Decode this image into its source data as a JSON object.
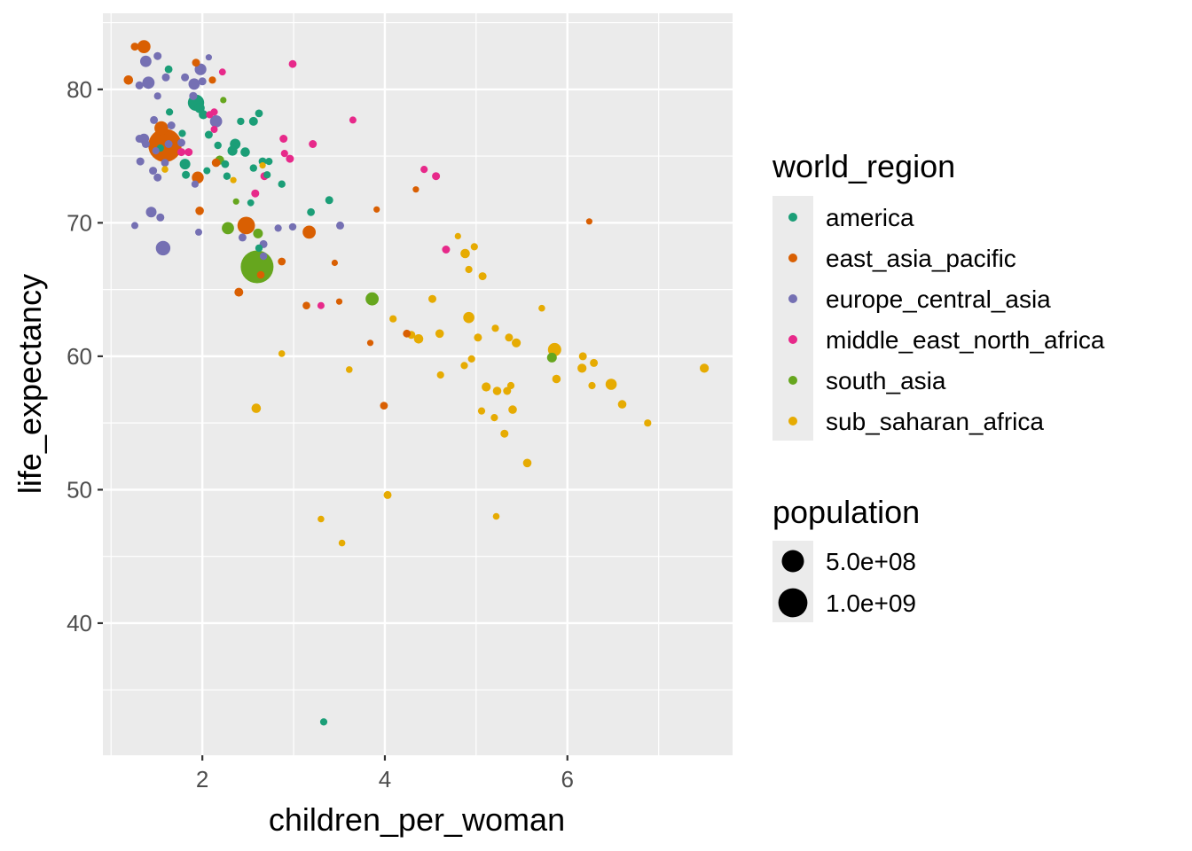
{
  "chart_data": {
    "type": "scatter",
    "xlabel": "children_per_woman",
    "ylabel": "life_expectancy",
    "xlim": [
      0.91,
      7.81
    ],
    "ylim": [
      30.1,
      85.7
    ],
    "x_ticks": [
      2,
      4,
      6
    ],
    "x_tick_labels": [
      "2",
      "4",
      "6"
    ],
    "y_ticks": [
      40,
      50,
      60,
      70,
      80
    ],
    "y_tick_labels": [
      "40",
      "50",
      "60",
      "70",
      "80"
    ],
    "grid": true,
    "legend_position": "right",
    "color_legend": {
      "title": "world_region",
      "entries": [
        {
          "label": "america",
          "color": "#1B9E77"
        },
        {
          "label": "east_asia_pacific",
          "color": "#D95F02"
        },
        {
          "label": "europe_central_asia",
          "color": "#7570B3"
        },
        {
          "label": "middle_east_north_africa",
          "color": "#E7298A"
        },
        {
          "label": "south_asia",
          "color": "#66A61E"
        },
        {
          "label": "sub_saharan_africa",
          "color": "#E6AB02"
        }
      ]
    },
    "size_legend": {
      "title": "population",
      "entries": [
        {
          "label": "5.0e+08",
          "value": 500000000
        },
        {
          "label": "1.0e+09",
          "value": 1000000000
        }
      ]
    },
    "series": [
      {
        "name": "america",
        "points": [
          [
            1.63,
            81.5,
            8
          ],
          [
            1.64,
            78.3,
            5
          ],
          [
            1.93,
            79.0,
            210
          ],
          [
            1.97,
            78.6,
            35
          ],
          [
            2.01,
            78.1,
            20
          ],
          [
            1.78,
            76.7,
            5
          ],
          [
            1.54,
            75.6,
            5
          ],
          [
            1.81,
            74.4,
            45
          ],
          [
            1.82,
            73.6,
            10
          ],
          [
            2.07,
            76.6,
            10
          ],
          [
            2.17,
            75.8,
            6
          ],
          [
            2.05,
            73.9,
            4
          ],
          [
            2.27,
            73.5,
            6
          ],
          [
            2.42,
            77.6,
            6
          ],
          [
            2.56,
            77.6,
            18
          ],
          [
            2.62,
            78.2,
            8
          ],
          [
            2.36,
            75.9,
            45
          ],
          [
            2.33,
            75.4,
            32
          ],
          [
            2.47,
            75.3,
            25
          ],
          [
            2.25,
            74.4,
            8
          ],
          [
            2.66,
            74.6,
            10
          ],
          [
            2.73,
            74.6,
            5
          ],
          [
            2.56,
            74.1,
            6
          ],
          [
            2.71,
            73.6,
            5
          ],
          [
            2.87,
            72.9,
            6
          ],
          [
            2.53,
            71.5,
            3
          ],
          [
            3.19,
            70.8,
            8
          ],
          [
            3.39,
            71.7,
            10
          ],
          [
            2.62,
            68.1,
            6
          ],
          [
            3.33,
            32.6,
            5
          ]
        ]
      },
      {
        "name": "east_asia_pacific",
        "points": [
          [
            1.26,
            83.2,
            10
          ],
          [
            1.36,
            83.2,
            100
          ],
          [
            1.19,
            80.7,
            25
          ],
          [
            1.93,
            82.0,
            10
          ],
          [
            2.11,
            80.7,
            5
          ],
          [
            1.55,
            77.1,
            120
          ],
          [
            1.59,
            75.8,
            1390
          ],
          [
            1.95,
            73.4,
            70
          ],
          [
            2.15,
            74.5,
            15
          ],
          [
            2.48,
            69.8,
            260
          ],
          [
            1.97,
            70.9,
            15
          ],
          [
            3.17,
            69.3,
            100
          ],
          [
            2.4,
            64.8,
            18
          ],
          [
            2.64,
            66.1,
            7
          ],
          [
            2.87,
            67.1,
            8
          ],
          [
            3.45,
            67.0,
            1
          ],
          [
            3.14,
            63.8,
            7
          ],
          [
            3.5,
            64.1,
            1
          ],
          [
            3.91,
            71.0,
            1
          ],
          [
            4.34,
            72.5,
            1
          ],
          [
            6.24,
            70.1,
            1
          ],
          [
            3.84,
            61.0,
            1
          ],
          [
            4.24,
            61.7,
            8
          ],
          [
            3.99,
            56.3,
            8
          ]
        ]
      },
      {
        "name": "europe_central_asia",
        "points": [
          [
            1.51,
            82.5,
            10
          ],
          [
            1.38,
            82.1,
            60
          ],
          [
            2.07,
            82.4,
            1
          ],
          [
            1.31,
            80.3,
            10
          ],
          [
            1.41,
            80.5,
            80
          ],
          [
            1.6,
            80.9,
            10
          ],
          [
            1.51,
            79.5,
            5
          ],
          [
            1.81,
            80.9,
            10
          ],
          [
            1.91,
            80.4,
            60
          ],
          [
            1.98,
            81.5,
            65
          ],
          [
            2.0,
            80.6,
            10
          ],
          [
            1.9,
            79.5,
            11
          ],
          [
            2.15,
            77.6,
            80
          ],
          [
            1.47,
            77.7,
            10
          ],
          [
            1.31,
            76.3,
            10
          ],
          [
            1.36,
            76.3,
            40
          ],
          [
            1.38,
            75.9,
            10
          ],
          [
            1.49,
            75.4,
            5
          ],
          [
            1.63,
            75.9,
            10
          ],
          [
            1.59,
            74.5,
            8
          ],
          [
            1.32,
            74.6,
            10
          ],
          [
            1.46,
            73.9,
            10
          ],
          [
            1.51,
            73.4,
            10
          ],
          [
            1.92,
            72.9,
            5
          ],
          [
            1.44,
            70.8,
            45
          ],
          [
            1.54,
            70.4,
            10
          ],
          [
            1.26,
            69.8,
            4
          ],
          [
            1.57,
            68.1,
            145
          ],
          [
            1.96,
            69.3,
            4
          ],
          [
            2.44,
            68.9,
            10
          ],
          [
            2.67,
            68.4,
            10
          ],
          [
            2.83,
            69.6,
            5
          ],
          [
            2.99,
            69.7,
            6
          ],
          [
            3.51,
            69.8,
            9
          ],
          [
            2.67,
            67.5,
            6
          ],
          [
            1.66,
            77.3,
            10
          ],
          [
            1.77,
            76.0,
            10
          ]
        ]
      },
      {
        "name": "middle_east_north_africa",
        "points": [
          [
            2.99,
            81.9,
            8
          ],
          [
            2.22,
            81.3,
            3
          ],
          [
            2.08,
            78.1,
            5
          ],
          [
            2.13,
            78.3,
            5
          ],
          [
            2.13,
            77.0,
            4
          ],
          [
            3.65,
            77.7,
            4
          ],
          [
            2.89,
            76.3,
            10
          ],
          [
            3.21,
            75.9,
            10
          ],
          [
            2.9,
            75.2,
            5
          ],
          [
            2.96,
            74.8,
            10
          ],
          [
            1.77,
            75.3,
            10
          ],
          [
            2.68,
            73.5,
            10
          ],
          [
            2.58,
            72.2,
            10
          ],
          [
            4.43,
            74.0,
            5
          ],
          [
            4.56,
            73.5,
            10
          ],
          [
            4.67,
            68.0,
            10
          ],
          [
            3.3,
            63.8,
            4
          ],
          [
            1.85,
            75.3,
            10
          ]
        ]
      },
      {
        "name": "south_asia",
        "points": [
          [
            2.23,
            79.2,
            1
          ],
          [
            2.19,
            74.7,
            20
          ],
          [
            2.28,
            69.6,
            80
          ],
          [
            2.61,
            69.2,
            30
          ],
          [
            2.6,
            66.7,
            1350
          ],
          [
            3.86,
            64.3,
            100
          ],
          [
            2.37,
            71.6,
            1
          ],
          [
            5.83,
            59.9,
            30
          ]
        ]
      },
      {
        "name": "sub_saharan_africa",
        "points": [
          [
            1.59,
            74.0,
            2
          ],
          [
            2.34,
            73.2,
            1
          ],
          [
            2.66,
            74.3,
            1
          ],
          [
            4.8,
            69.0,
            1
          ],
          [
            4.98,
            68.2,
            5
          ],
          [
            4.88,
            67.7,
            25
          ],
          [
            4.92,
            66.5,
            5
          ],
          [
            5.07,
            66.0,
            10
          ],
          [
            5.72,
            63.6,
            2
          ],
          [
            4.52,
            64.3,
            10
          ],
          [
            4.92,
            62.9,
            55
          ],
          [
            4.09,
            62.8,
            5
          ],
          [
            5.21,
            62.1,
            5
          ],
          [
            5.02,
            61.4,
            10
          ],
          [
            4.6,
            61.7,
            15
          ],
          [
            4.29,
            61.6,
            10
          ],
          [
            4.37,
            61.3,
            25
          ],
          [
            5.36,
            61.4,
            10
          ],
          [
            5.44,
            61.0,
            20
          ],
          [
            5.86,
            60.5,
            105
          ],
          [
            2.87,
            60.2,
            2
          ],
          [
            4.95,
            59.8,
            5
          ],
          [
            4.87,
            59.3,
            5
          ],
          [
            6.17,
            60.0,
            10
          ],
          [
            6.29,
            59.5,
            10
          ],
          [
            6.16,
            59.1,
            20
          ],
          [
            7.5,
            59.1,
            20
          ],
          [
            5.88,
            58.3,
            15
          ],
          [
            4.61,
            58.6,
            5
          ],
          [
            3.61,
            59.0,
            2
          ],
          [
            5.11,
            57.7,
            20
          ],
          [
            5.23,
            57.4,
            15
          ],
          [
            5.34,
            57.4,
            10
          ],
          [
            5.38,
            57.8,
            5
          ],
          [
            6.27,
            57.8,
            5
          ],
          [
            6.48,
            57.9,
            55
          ],
          [
            5.06,
            55.9,
            5
          ],
          [
            5.2,
            55.4,
            5
          ],
          [
            5.4,
            56.0,
            15
          ],
          [
            6.6,
            56.4,
            15
          ],
          [
            6.88,
            55.0,
            5
          ],
          [
            5.31,
            54.2,
            10
          ],
          [
            5.56,
            52.0,
            15
          ],
          [
            2.59,
            56.1,
            25
          ],
          [
            4.03,
            49.6,
            10
          ],
          [
            3.3,
            47.8,
            2
          ],
          [
            5.22,
            48.0,
            2
          ],
          [
            3.53,
            46.0,
            2
          ]
        ]
      }
    ],
    "point_format": [
      "children_per_woman",
      "life_expectancy",
      "population_millions"
    ]
  }
}
